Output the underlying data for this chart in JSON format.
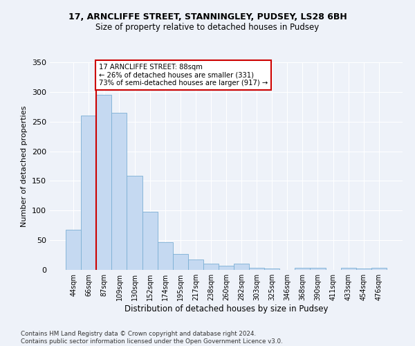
{
  "title": "17, ARNCLIFFE STREET, STANNINGLEY, PUDSEY, LS28 6BH",
  "subtitle": "Size of property relative to detached houses in Pudsey",
  "xlabel": "Distribution of detached houses by size in Pudsey",
  "ylabel": "Number of detached properties",
  "categories": [
    "44sqm",
    "66sqm",
    "87sqm",
    "109sqm",
    "130sqm",
    "152sqm",
    "174sqm",
    "195sqm",
    "217sqm",
    "238sqm",
    "260sqm",
    "282sqm",
    "303sqm",
    "325sqm",
    "346sqm",
    "368sqm",
    "390sqm",
    "411sqm",
    "433sqm",
    "454sqm",
    "476sqm"
  ],
  "values": [
    68,
    260,
    295,
    265,
    159,
    98,
    47,
    27,
    18,
    10,
    7,
    10,
    4,
    2,
    0,
    4,
    4,
    0,
    4,
    2,
    4
  ],
  "bar_color": "#c5d9f1",
  "bar_edge_color": "#7bafd4",
  "property_line_label": "17 ARNCLIFFE STREET: 88sqm",
  "annotation_line1": "← 26% of detached houses are smaller (331)",
  "annotation_line2": "73% of semi-detached houses are larger (917) →",
  "annotation_box_color": "#ffffff",
  "annotation_box_edge_color": "#cc0000",
  "property_line_color": "#cc0000",
  "background_color": "#eef2f9",
  "grid_color": "#ffffff",
  "footer": "Contains HM Land Registry data © Crown copyright and database right 2024.\nContains public sector information licensed under the Open Government Licence v3.0.",
  "ylim": [
    0,
    350
  ],
  "yticks": [
    0,
    50,
    100,
    150,
    200,
    250,
    300,
    350
  ]
}
